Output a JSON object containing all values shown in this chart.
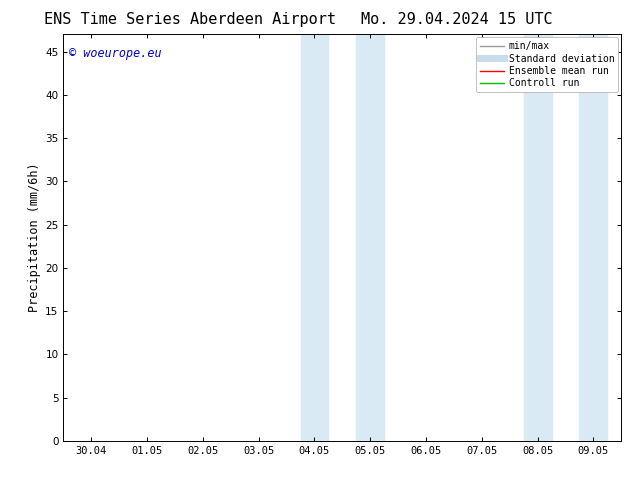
{
  "title_left": "ENS Time Series Aberdeen Airport",
  "title_right": "Mo. 29.04.2024 15 UTC",
  "ylabel": "Precipitation (mm/6h)",
  "ylim": [
    0,
    47
  ],
  "yticks": [
    0,
    5,
    10,
    15,
    20,
    25,
    30,
    35,
    40,
    45
  ],
  "xtick_labels": [
    "30.04",
    "01.05",
    "02.05",
    "03.05",
    "04.05",
    "05.05",
    "06.05",
    "07.05",
    "08.05",
    "09.05"
  ],
  "x_positions": [
    0,
    1,
    2,
    3,
    4,
    5,
    6,
    7,
    8,
    9
  ],
  "xlim": [
    -0.5,
    9.5
  ],
  "shaded_regions": [
    {
      "xmin": 3.75,
      "xmax": 4.25,
      "color": "#daeaf5"
    },
    {
      "xmin": 4.75,
      "xmax": 5.25,
      "color": "#daeaf5"
    },
    {
      "xmin": 7.75,
      "xmax": 8.25,
      "color": "#daeaf5"
    },
    {
      "xmin": 8.75,
      "xmax": 9.25,
      "color": "#daeaf5"
    }
  ],
  "watermark_text": "© woeurope.eu",
  "watermark_color": "#0000cc",
  "background_color": "#ffffff",
  "legend_entries": [
    {
      "label": "min/max",
      "color": "#999999",
      "lw": 1.0
    },
    {
      "label": "Standard deviation",
      "color": "#c8dced",
      "lw": 5
    },
    {
      "label": "Ensemble mean run",
      "color": "#ff0000",
      "lw": 1.0
    },
    {
      "label": "Controll run",
      "color": "#00bb00",
      "lw": 1.0
    }
  ],
  "title_fontsize": 11,
  "tick_fontsize": 7.5,
  "ylabel_fontsize": 8.5,
  "watermark_fontsize": 8.5
}
